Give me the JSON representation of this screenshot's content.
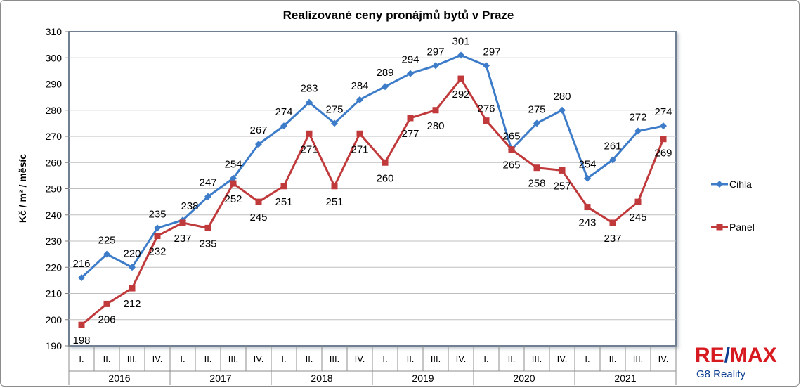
{
  "chart_data": {
    "type": "line",
    "title": "Realizované ceny pronájmů bytů v Praze",
    "ylabel": "Kč / m² / měsíc",
    "xlabel": "",
    "ylim": [
      190,
      310
    ],
    "yticks": [
      190,
      200,
      210,
      220,
      230,
      240,
      250,
      260,
      270,
      280,
      290,
      300,
      310
    ],
    "grid": true,
    "legend_position": "right",
    "quarters": [
      "I.",
      "II.",
      "III.",
      "IV.",
      "I.",
      "II.",
      "III.",
      "IV.",
      "I.",
      "II.",
      "III.",
      "IV.",
      "I.",
      "II.",
      "III.",
      "IV.",
      "I.",
      "II.",
      "III.",
      "IV.",
      "I.",
      "II.",
      "III.",
      "IV."
    ],
    "years": [
      "2016",
      "2017",
      "2018",
      "2019",
      "2020",
      "2021"
    ],
    "series": [
      {
        "name": "Cihla",
        "color": "#3d7cc9",
        "marker": "diamond",
        "values": [
          216,
          225,
          220,
          235,
          238,
          247,
          254,
          267,
          274,
          283,
          275,
          284,
          289,
          294,
          297,
          301,
          297,
          265,
          275,
          280,
          254,
          261,
          272,
          274
        ]
      },
      {
        "name": "Panel",
        "color": "#c0393b",
        "marker": "square",
        "values": [
          198,
          206,
          212,
          232,
          237,
          235,
          252,
          245,
          251,
          271,
          251,
          271,
          260,
          277,
          280,
          292,
          276,
          265,
          258,
          257,
          243,
          237,
          245,
          269
        ]
      }
    ]
  },
  "logo": {
    "re": "RE",
    "slash": "/",
    "max": "MAX",
    "subtitle": "G8 Reality"
  }
}
